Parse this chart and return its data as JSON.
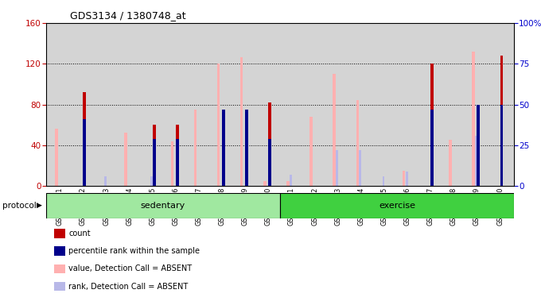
{
  "title": "GDS3134 / 1380748_at",
  "samples": [
    "GSM184851",
    "GSM184852",
    "GSM184853",
    "GSM184854",
    "GSM184855",
    "GSM184856",
    "GSM184857",
    "GSM184858",
    "GSM184859",
    "GSM184860",
    "GSM184861",
    "GSM184862",
    "GSM184863",
    "GSM184864",
    "GSM184865",
    "GSM184866",
    "GSM184867",
    "GSM184868",
    "GSM184869",
    "GSM184870"
  ],
  "count": [
    null,
    92,
    null,
    null,
    60,
    60,
    null,
    null,
    null,
    82,
    null,
    null,
    null,
    null,
    null,
    null,
    120,
    null,
    null,
    128
  ],
  "percentile_rank_pct": [
    null,
    41,
    null,
    null,
    29,
    29,
    null,
    47,
    47,
    29,
    null,
    null,
    null,
    null,
    null,
    null,
    47,
    null,
    50,
    50
  ],
  "value_absent": [
    56,
    null,
    null,
    52,
    null,
    44,
    75,
    120,
    126,
    5,
    5,
    68,
    110,
    84,
    null,
    15,
    null,
    45,
    132,
    null
  ],
  "rank_absent_pct": [
    null,
    null,
    6,
    null,
    6,
    null,
    null,
    null,
    null,
    null,
    7,
    null,
    22,
    22,
    6,
    9,
    null,
    null,
    31,
    null
  ],
  "sedentary_count": 10,
  "left_ylim": [
    0,
    160
  ],
  "right_ylim": [
    0,
    100
  ],
  "left_yticks": [
    0,
    40,
    80,
    120,
    160
  ],
  "right_yticks": [
    0,
    25,
    50,
    75,
    100
  ],
  "right_yticklabels": [
    "0",
    "25",
    "50",
    "75",
    "100%"
  ],
  "color_count": "#c00000",
  "color_rank": "#00008b",
  "color_value_absent": "#ffb0b0",
  "color_rank_absent": "#b8b8e8",
  "color_sedentary": "#a0e8a0",
  "color_exercise": "#40d040",
  "bar_width": 0.22,
  "protocol_label": "protocol",
  "sedentary_label": "sedentary",
  "exercise_label": "exercise",
  "legend_items": [
    {
      "label": "count",
      "color": "#c00000"
    },
    {
      "label": "percentile rank within the sample",
      "color": "#00008b"
    },
    {
      "label": "value, Detection Call = ABSENT",
      "color": "#ffb0b0"
    },
    {
      "label": "rank, Detection Call = ABSENT",
      "color": "#b8b8e8"
    }
  ]
}
